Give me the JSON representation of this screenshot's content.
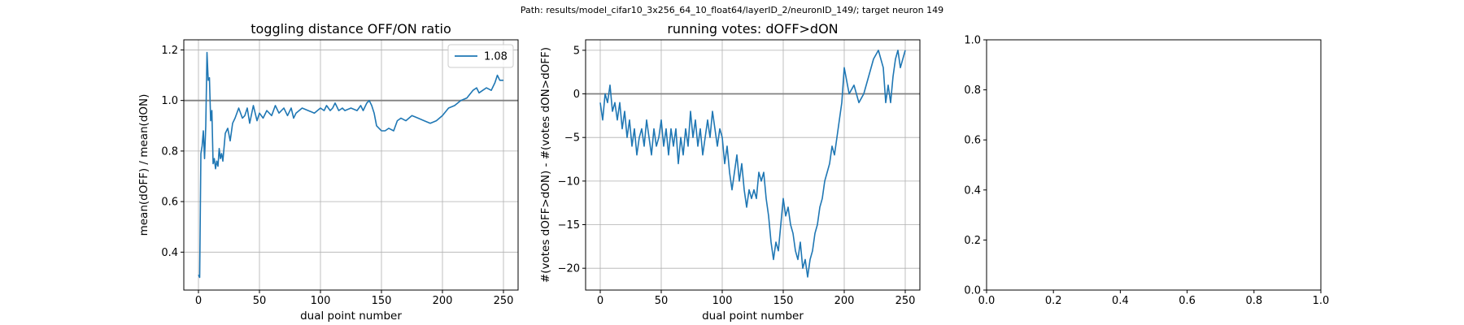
{
  "figure": {
    "suptitle": "Path: results/model_cifar10_3x256_64_10_float64/layerID_2/neuronID_149/; target neuron 149"
  },
  "chart_data": [
    {
      "type": "line",
      "title": "toggling distance OFF/ON ratio",
      "xlabel": "dual point number",
      "ylabel": "mean(dOFF) / mean(dON)",
      "xlim": [
        -12,
        262
      ],
      "ylim": [
        0.25,
        1.24
      ],
      "xticks": [
        0,
        50,
        100,
        150,
        200,
        250
      ],
      "xtick_labels": [
        "0",
        "50",
        "100",
        "150",
        "200",
        "250"
      ],
      "yticks": [
        0.4,
        0.6,
        0.8,
        1.0,
        1.2
      ],
      "ytick_labels": [
        "0.4",
        "0.6",
        "0.8",
        "1.0",
        "1.2"
      ],
      "grid": true,
      "legend": {
        "placement": "upper right",
        "entries": [
          "1.08"
        ]
      },
      "reference_line": 1.0,
      "series": [
        {
          "name": "1.08",
          "color": "#1f77b4",
          "x": [
            0,
            1,
            2,
            3,
            4,
            5,
            6,
            7,
            8,
            9,
            10,
            11,
            12,
            13,
            14,
            15,
            16,
            17,
            18,
            19,
            20,
            22,
            24,
            26,
            28,
            30,
            33,
            36,
            38,
            40,
            42,
            45,
            48,
            50,
            53,
            56,
            60,
            63,
            66,
            70,
            73,
            76,
            78,
            80,
            85,
            90,
            95,
            100,
            103,
            105,
            108,
            110,
            112,
            115,
            118,
            120,
            125,
            130,
            133,
            135,
            138,
            140,
            142,
            144,
            146,
            148,
            150,
            153,
            156,
            160,
            163,
            166,
            170,
            175,
            180,
            185,
            190,
            195,
            200,
            205,
            210,
            215,
            220,
            225,
            228,
            230,
            233,
            236,
            240,
            243,
            245,
            247,
            250
          ],
          "y": [
            0.31,
            0.3,
            0.79,
            0.82,
            0.88,
            0.77,
            0.9,
            1.19,
            1.08,
            1.09,
            0.92,
            0.96,
            0.75,
            0.77,
            0.73,
            0.76,
            0.74,
            0.81,
            0.77,
            0.79,
            0.76,
            0.87,
            0.89,
            0.84,
            0.91,
            0.93,
            0.97,
            0.93,
            0.94,
            0.97,
            0.91,
            0.98,
            0.92,
            0.95,
            0.93,
            0.96,
            0.94,
            0.98,
            0.95,
            0.97,
            0.94,
            0.97,
            0.93,
            0.95,
            0.97,
            0.96,
            0.95,
            0.97,
            0.96,
            0.98,
            0.96,
            0.97,
            0.99,
            0.96,
            0.97,
            0.96,
            0.97,
            0.96,
            0.98,
            0.96,
            0.99,
            1.0,
            0.98,
            0.95,
            0.9,
            0.89,
            0.88,
            0.88,
            0.89,
            0.88,
            0.92,
            0.93,
            0.92,
            0.94,
            0.93,
            0.92,
            0.91,
            0.92,
            0.94,
            0.97,
            0.98,
            1.0,
            1.01,
            1.04,
            1.05,
            1.03,
            1.04,
            1.05,
            1.04,
            1.07,
            1.1,
            1.08,
            1.08
          ]
        }
      ]
    },
    {
      "type": "line",
      "title": "running votes: dOFF>dON",
      "xlabel": "dual point number",
      "ylabel": "#(votes dOFF>dON) - #(votes dON>dOFF)",
      "xlim": [
        -12,
        262
      ],
      "ylim": [
        -22.5,
        6.2
      ],
      "xticks": [
        0,
        50,
        100,
        150,
        200,
        250
      ],
      "xtick_labels": [
        "0",
        "50",
        "100",
        "150",
        "200",
        "250"
      ],
      "yticks": [
        -20,
        -15,
        -10,
        -5,
        0,
        5
      ],
      "ytick_labels": [
        "−20",
        "−15",
        "−10",
        "−5",
        "0",
        "5"
      ],
      "grid": true,
      "reference_line": 0,
      "series": [
        {
          "name": "",
          "color": "#1f77b4",
          "x": [
            0,
            2,
            4,
            6,
            8,
            10,
            12,
            14,
            16,
            18,
            20,
            22,
            24,
            26,
            28,
            30,
            32,
            34,
            36,
            38,
            40,
            42,
            44,
            46,
            48,
            50,
            52,
            54,
            56,
            58,
            60,
            62,
            64,
            66,
            68,
            70,
            72,
            74,
            76,
            78,
            80,
            82,
            84,
            86,
            88,
            90,
            92,
            94,
            96,
            98,
            100,
            102,
            104,
            106,
            108,
            110,
            112,
            114,
            116,
            118,
            120,
            122,
            124,
            126,
            128,
            130,
            132,
            134,
            136,
            138,
            140,
            142,
            144,
            146,
            148,
            150,
            152,
            154,
            156,
            158,
            160,
            162,
            164,
            166,
            168,
            170,
            172,
            174,
            176,
            178,
            180,
            182,
            184,
            186,
            188,
            190,
            192,
            194,
            196,
            198,
            200,
            204,
            208,
            212,
            216,
            220,
            224,
            228,
            230,
            232,
            234,
            236,
            238,
            240,
            242,
            244,
            246,
            248,
            250
          ],
          "y": [
            -1,
            -3,
            0,
            -1,
            1,
            -2,
            -1,
            -3,
            -1,
            -4,
            -2,
            -5,
            -3,
            -6,
            -4,
            -7,
            -5,
            -4,
            -6,
            -3,
            -5,
            -7,
            -4,
            -6,
            -5,
            -3,
            -6,
            -4,
            -7,
            -4,
            -6,
            -4,
            -8,
            -5,
            -7,
            -4,
            -6,
            -2,
            -5,
            -3,
            -6,
            -4,
            -7,
            -5,
            -3,
            -5,
            -2,
            -4,
            -6,
            -4,
            -5,
            -8,
            -6,
            -9,
            -11,
            -9,
            -7,
            -10,
            -8,
            -11,
            -13,
            -11,
            -12,
            -11,
            -12,
            -9,
            -10,
            -9,
            -12,
            -14,
            -17,
            -19,
            -17,
            -18,
            -15,
            -12,
            -14,
            -13,
            -15,
            -16,
            -18,
            -19,
            -17,
            -20,
            -19,
            -21,
            -19,
            -18,
            -16,
            -15,
            -13,
            -12,
            -10,
            -9,
            -8,
            -6,
            -7,
            -5,
            -3,
            -1,
            3,
            0,
            1,
            -1,
            0,
            2,
            4,
            5,
            4,
            3,
            -1,
            1,
            -1,
            2,
            4,
            5,
            3,
            4,
            5
          ]
        }
      ]
    },
    {
      "type": "line",
      "title": "",
      "xlabel": "",
      "ylabel": "",
      "xlim": [
        0,
        1
      ],
      "ylim": [
        0,
        1
      ],
      "xticks": [
        0,
        0.2,
        0.4,
        0.6,
        0.8,
        1.0
      ],
      "xtick_labels": [
        "0.0",
        "0.2",
        "0.4",
        "0.6",
        "0.8",
        "1.0"
      ],
      "yticks": [
        0,
        0.2,
        0.4,
        0.6,
        0.8,
        1.0
      ],
      "ytick_labels": [
        "0.0",
        "0.2",
        "0.4",
        "0.6",
        "0.8",
        "1.0"
      ],
      "grid": false,
      "series": []
    }
  ]
}
